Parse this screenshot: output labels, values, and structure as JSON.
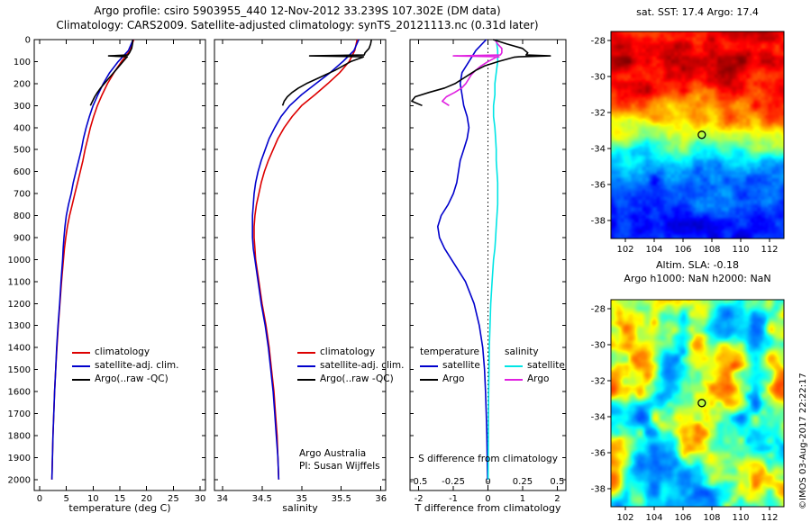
{
  "title": {
    "line1": "Argo profile: csiro 5903955_440 12-Nov-2012 33.239S 107.302E (DM data)",
    "line2": "Climatology: CARS2009. Satellite-adjusted climatology: synTS_20121113.nc (0.31d later)"
  },
  "watermark": "©IMOS 03-Aug-2017 22:22:17",
  "chart_data": [
    {
      "id": "temperature-profile",
      "type": "line",
      "xlabel": "temperature (deg C)",
      "xlim": [
        -1,
        31
      ],
      "xticks": [
        0,
        5,
        10,
        15,
        20,
        25,
        30
      ],
      "ylim": [
        0,
        2050
      ],
      "yticks": [
        0,
        100,
        200,
        300,
        400,
        500,
        600,
        700,
        800,
        900,
        1000,
        1100,
        1200,
        1300,
        1400,
        1500,
        1600,
        1700,
        1800,
        1900,
        2000
      ],
      "legend_position": "lower-left",
      "series": [
        {
          "name": "climatology",
          "color": "#dd0000",
          "depth": [
            0,
            50,
            100,
            150,
            200,
            250,
            300,
            350,
            400,
            450,
            500,
            550,
            600,
            650,
            700,
            750,
            800,
            850,
            900,
            950,
            1000,
            1100,
            1200,
            1300,
            1400,
            1500,
            1600,
            1700,
            1800,
            1900,
            2000
          ],
          "values": [
            17.6,
            16.9,
            15.3,
            13.9,
            12.7,
            11.7,
            10.8,
            10.1,
            9.5,
            9.0,
            8.5,
            8.1,
            7.6,
            7.1,
            6.6,
            6.1,
            5.6,
            5.2,
            4.9,
            4.65,
            4.45,
            4.1,
            3.8,
            3.5,
            3.25,
            3.0,
            2.8,
            2.65,
            2.5,
            2.4,
            2.3
          ]
        },
        {
          "name": "satellite-adj. clim.",
          "color": "#0000cc",
          "depth": [
            0,
            50,
            100,
            150,
            200,
            250,
            300,
            350,
            400,
            450,
            500,
            550,
            600,
            650,
            700,
            750,
            800,
            850,
            900,
            950,
            1000,
            1100,
            1200,
            1300,
            1400,
            1500,
            1600,
            1700,
            1800,
            1900,
            2000
          ],
          "values": [
            17.5,
            16.6,
            14.7,
            13.1,
            11.9,
            10.9,
            10.0,
            9.3,
            8.7,
            8.2,
            7.8,
            7.3,
            6.8,
            6.3,
            5.9,
            5.4,
            5.0,
            4.75,
            4.55,
            4.4,
            4.3,
            4.0,
            3.75,
            3.45,
            3.2,
            3.0,
            2.8,
            2.65,
            2.5,
            2.4,
            2.3
          ]
        },
        {
          "name": "Argo(..raw -QC)",
          "color": "#000000",
          "depth": [
            0,
            20,
            40,
            60,
            70,
            74,
            78,
            80,
            100,
            120,
            140,
            160,
            180,
            200,
            220,
            240,
            260,
            280,
            300
          ],
          "values": [
            17.4,
            17.35,
            17.2,
            16.8,
            16.5,
            12.9,
            16.4,
            16.3,
            15.6,
            14.9,
            14.2,
            13.5,
            12.8,
            12.1,
            11.4,
            10.8,
            10.3,
            9.9,
            9.5
          ]
        }
      ]
    },
    {
      "id": "salinity-profile",
      "type": "line",
      "xlabel": "salinity",
      "xlim": [
        33.9,
        36.06
      ],
      "xticks": [
        34,
        34.5,
        35,
        35.5,
        36
      ],
      "ylim": [
        0,
        2050
      ],
      "yticks": [
        0,
        100,
        200,
        300,
        400,
        500,
        600,
        700,
        800,
        900,
        1000,
        1100,
        1200,
        1300,
        1400,
        1500,
        1600,
        1700,
        1800,
        1900,
        2000
      ],
      "annotation": [
        "Argo Australia",
        "PI: Susan Wijffels"
      ],
      "series": [
        {
          "name": "climatology",
          "color": "#dd0000",
          "depth": [
            0,
            50,
            100,
            150,
            200,
            250,
            300,
            350,
            400,
            450,
            500,
            550,
            600,
            650,
            700,
            750,
            800,
            850,
            900,
            950,
            1000,
            1100,
            1200,
            1300,
            1400,
            1500,
            1600,
            1700,
            1800,
            1900,
            2000
          ],
          "values": [
            35.7,
            35.67,
            35.6,
            35.48,
            35.33,
            35.17,
            35.0,
            34.88,
            34.78,
            34.7,
            34.64,
            34.58,
            34.53,
            34.49,
            34.46,
            34.43,
            34.41,
            34.4,
            34.4,
            34.41,
            34.42,
            34.46,
            34.5,
            34.55,
            34.59,
            34.62,
            34.65,
            34.67,
            34.69,
            34.7,
            34.71
          ]
        },
        {
          "name": "satellite-adj. clim.",
          "color": "#0000cc",
          "depth": [
            0,
            50,
            100,
            150,
            200,
            250,
            300,
            350,
            400,
            450,
            500,
            550,
            600,
            650,
            700,
            750,
            800,
            850,
            900,
            950,
            1000,
            1100,
            1200,
            1300,
            1400,
            1500,
            1600,
            1700,
            1800,
            1900,
            2000
          ],
          "values": [
            35.72,
            35.66,
            35.52,
            35.36,
            35.18,
            35.0,
            34.85,
            34.74,
            34.66,
            34.59,
            34.54,
            34.49,
            34.45,
            34.42,
            34.4,
            34.39,
            34.38,
            34.38,
            34.38,
            34.39,
            34.41,
            34.45,
            34.49,
            34.54,
            34.58,
            34.61,
            34.64,
            34.66,
            34.68,
            34.7,
            34.71
          ]
        },
        {
          "name": "Argo(..raw -QC)",
          "color": "#000000",
          "depth": [
            0,
            20,
            40,
            60,
            70,
            74,
            78,
            80,
            100,
            120,
            140,
            160,
            180,
            200,
            220,
            240,
            260,
            280,
            300
          ],
          "values": [
            35.88,
            35.87,
            35.85,
            35.8,
            35.79,
            35.1,
            35.78,
            35.77,
            35.62,
            35.52,
            35.42,
            35.3,
            35.18,
            35.06,
            34.96,
            34.88,
            34.82,
            34.78,
            34.76
          ]
        }
      ]
    },
    {
      "id": "difference-profile",
      "type": "line",
      "xlabel": "T difference from climatology",
      "x2label": "S difference from climatology",
      "xlim": [
        -2.25,
        2.25
      ],
      "xticks": [
        -2,
        -1,
        0,
        1,
        2
      ],
      "x2ticks": [
        -0.5,
        -0.25,
        0,
        0.25,
        0.5
      ],
      "s_axis_scale": 4,
      "zero_line": true,
      "ylim": [
        0,
        2050
      ],
      "yticks": [
        0,
        100,
        200,
        300,
        400,
        500,
        600,
        700,
        800,
        900,
        1000,
        1100,
        1200,
        1300,
        1400,
        1500,
        1600,
        1700,
        1800,
        1900,
        2000
      ],
      "legend_headers": [
        "temperature",
        "salinity"
      ],
      "series": [
        {
          "name": "satellite",
          "group": "temperature",
          "axis": "T",
          "color": "#0000cc",
          "depth": [
            0,
            50,
            100,
            150,
            200,
            250,
            300,
            350,
            400,
            450,
            500,
            550,
            600,
            650,
            700,
            750,
            800,
            850,
            900,
            950,
            1000,
            1100,
            1200,
            1300,
            1400,
            1500,
            1600,
            1700,
            1800,
            1900,
            2000
          ],
          "values": [
            -0.05,
            -0.35,
            -0.55,
            -0.75,
            -0.8,
            -0.75,
            -0.7,
            -0.6,
            -0.55,
            -0.6,
            -0.7,
            -0.8,
            -0.85,
            -0.9,
            -1.0,
            -1.15,
            -1.35,
            -1.45,
            -1.4,
            -1.25,
            -1.05,
            -0.65,
            -0.4,
            -0.25,
            -0.15,
            -0.1,
            -0.07,
            -0.05,
            -0.03,
            -0.02,
            -0.01
          ]
        },
        {
          "name": "satellite",
          "group": "salinity",
          "axis": "S",
          "color": "#00e5e5",
          "depth": [
            0,
            50,
            100,
            150,
            200,
            250,
            300,
            350,
            400,
            450,
            500,
            550,
            600,
            650,
            700,
            750,
            800,
            850,
            900,
            950,
            1000,
            1100,
            1200,
            1300,
            1400,
            1500,
            1600,
            1700,
            1800,
            1900,
            2000
          ],
          "values": [
            0.06,
            0.07,
            0.07,
            0.06,
            0.05,
            0.05,
            0.04,
            0.04,
            0.05,
            0.055,
            0.06,
            0.06,
            0.065,
            0.07,
            0.07,
            0.07,
            0.065,
            0.06,
            0.055,
            0.05,
            0.04,
            0.03,
            0.02,
            0.015,
            0.01,
            0.008,
            0.005,
            0.004,
            0.003,
            0.002,
            0.001
          ]
        },
        {
          "name": "Argo",
          "group": "salinity",
          "axis": "S",
          "color": "#e020e0",
          "depth": [
            0,
            20,
            40,
            60,
            70,
            74,
            78,
            80,
            100,
            120,
            140,
            160,
            180,
            200,
            220,
            240,
            260,
            280,
            300
          ],
          "values": [
            0.05,
            0.07,
            0.1,
            0.1,
            0.09,
            -0.25,
            0.08,
            0.06,
            0.0,
            -0.05,
            -0.09,
            -0.12,
            -0.14,
            -0.16,
            -0.19,
            -0.24,
            -0.3,
            -0.33,
            -0.28
          ]
        },
        {
          "name": "Argo",
          "group": "temperature",
          "axis": "T",
          "color": "#000000",
          "depth": [
            0,
            20,
            40,
            60,
            70,
            74,
            78,
            80,
            100,
            120,
            140,
            160,
            180,
            200,
            220,
            240,
            260,
            280,
            300
          ],
          "values": [
            0.15,
            0.55,
            1.0,
            1.15,
            1.1,
            1.8,
            0.9,
            0.75,
            0.3,
            -0.1,
            -0.35,
            -0.55,
            -0.75,
            -0.95,
            -1.25,
            -1.7,
            -2.1,
            -2.2,
            -1.9
          ]
        }
      ]
    },
    {
      "id": "sst-map",
      "type": "heatmap",
      "title": "sat. SST: 17.4 Argo: 17.4",
      "colormap": "jet",
      "style": "sst-front",
      "lon_range": [
        101,
        113
      ],
      "lat_range": [
        -27.5,
        -39
      ],
      "xticks": [
        102,
        104,
        106,
        108,
        110,
        112
      ],
      "yticks": [
        -28,
        -30,
        -32,
        -34,
        -36,
        -38
      ],
      "marker": {
        "lon": 107.3,
        "lat": -33.24
      }
    },
    {
      "id": "sla-map",
      "type": "heatmap",
      "title_line1": "Altim. SLA: -0.18",
      "title_line2": "Argo h1000: NaN h2000: NaN",
      "colormap": "jet",
      "style": "sla-blobs",
      "lon_range": [
        101,
        113
      ],
      "lat_range": [
        -27.5,
        -39
      ],
      "xticks": [
        102,
        104,
        106,
        108,
        110,
        112
      ],
      "yticks": [
        -28,
        -30,
        -32,
        -34,
        -36,
        -38
      ],
      "marker": {
        "lon": 107.3,
        "lat": -33.24
      }
    }
  ]
}
